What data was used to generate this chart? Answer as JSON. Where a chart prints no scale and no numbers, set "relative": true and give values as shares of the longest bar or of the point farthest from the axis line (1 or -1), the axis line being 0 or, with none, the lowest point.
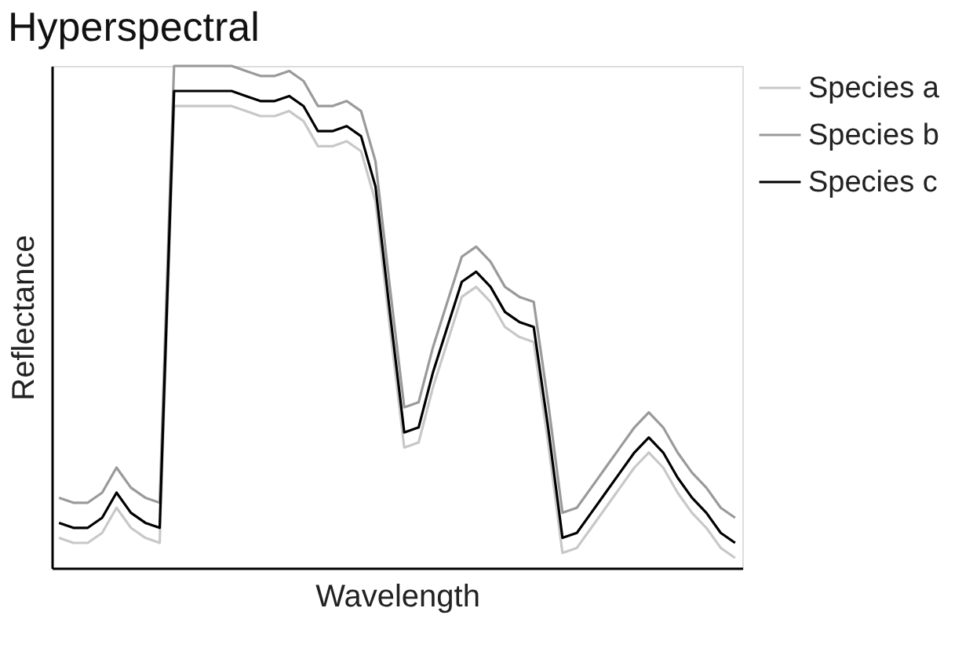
{
  "chart_data": {
    "type": "line",
    "title": "Hyperspectral",
    "xlabel": "Wavelength",
    "ylabel": "Reflectance",
    "relative": true,
    "tick_labels": false,
    "legend": "right",
    "grid": false,
    "categories": [
      null,
      null,
      null,
      null,
      null,
      null,
      null,
      null,
      null,
      null,
      null,
      null,
      null,
      null,
      null,
      null,
      null,
      null,
      null,
      null,
      null,
      null,
      null,
      null,
      null,
      null,
      null,
      null,
      null,
      null,
      null,
      null,
      null,
      null,
      null,
      null,
      null,
      null,
      null,
      null,
      null,
      null,
      null,
      null,
      null,
      null,
      null,
      null
    ],
    "series": [
      {
        "name": "Species a",
        "color": "#c8c8c8",
        "values": [
          0.06,
          0.05,
          0.05,
          0.07,
          0.12,
          0.08,
          0.06,
          0.05,
          0.92,
          0.92,
          0.92,
          0.92,
          0.92,
          0.91,
          0.9,
          0.9,
          0.91,
          0.89,
          0.84,
          0.84,
          0.85,
          0.83,
          0.73,
          0.48,
          0.24,
          0.25,
          0.36,
          0.45,
          0.54,
          0.56,
          0.53,
          0.48,
          0.46,
          0.45,
          0.25,
          0.03,
          0.04,
          0.08,
          0.12,
          0.16,
          0.2,
          0.23,
          0.2,
          0.15,
          0.11,
          0.08,
          0.04,
          0.02
        ]
      },
      {
        "name": "Species b",
        "color": "#9a9a9a",
        "values": [
          0.14,
          0.13,
          0.13,
          0.15,
          0.2,
          0.16,
          0.14,
          0.13,
          1.0,
          1.0,
          1.0,
          1.0,
          1.0,
          0.99,
          0.98,
          0.98,
          0.99,
          0.97,
          0.92,
          0.92,
          0.93,
          0.91,
          0.81,
          0.56,
          0.32,
          0.33,
          0.44,
          0.53,
          0.62,
          0.64,
          0.61,
          0.56,
          0.54,
          0.53,
          0.33,
          0.11,
          0.12,
          0.16,
          0.2,
          0.24,
          0.28,
          0.31,
          0.28,
          0.23,
          0.19,
          0.16,
          0.12,
          0.1
        ]
      },
      {
        "name": "Species c",
        "color": "#000000",
        "values": [
          0.09,
          0.08,
          0.08,
          0.1,
          0.15,
          0.11,
          0.09,
          0.08,
          0.95,
          0.95,
          0.95,
          0.95,
          0.95,
          0.94,
          0.93,
          0.93,
          0.94,
          0.92,
          0.87,
          0.87,
          0.88,
          0.86,
          0.76,
          0.51,
          0.27,
          0.28,
          0.39,
          0.48,
          0.57,
          0.59,
          0.56,
          0.51,
          0.49,
          0.48,
          0.28,
          0.06,
          0.07,
          0.11,
          0.15,
          0.19,
          0.23,
          0.26,
          0.23,
          0.18,
          0.14,
          0.11,
          0.07,
          0.05
        ]
      }
    ]
  }
}
